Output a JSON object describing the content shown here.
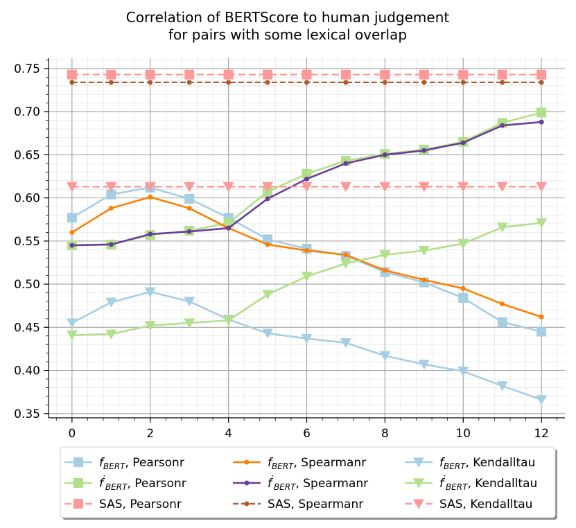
{
  "chart_data": {
    "type": "line",
    "title_lines": [
      "Correlation of BERTScore to human judgement",
      "for pairs with some lexical overlap"
    ],
    "xlabel": "",
    "ylabel": "",
    "xlim": [
      -0.6,
      12.6
    ],
    "ylim": [
      0.345,
      0.762
    ],
    "x_ticks": [
      0,
      2,
      4,
      6,
      8,
      10,
      12
    ],
    "y_ticks": [
      0.35,
      0.4,
      0.45,
      0.5,
      0.55,
      0.6,
      0.65,
      0.7,
      0.75
    ],
    "grid": true,
    "minor_grid": true,
    "legend_position": "below",
    "x": [
      0,
      1,
      2,
      3,
      4,
      5,
      6,
      7,
      8,
      9,
      10,
      11,
      12
    ],
    "series": [
      {
        "name": "Pearsonr",
        "label_prefix": "f",
        "label_sub": "BERT",
        "prime": false,
        "color": "#a6cee3",
        "marker": "square",
        "dashed": false,
        "values": [
          0.577,
          0.604,
          0.612,
          0.599,
          0.577,
          0.552,
          0.541,
          0.533,
          0.514,
          0.502,
          0.484,
          0.456,
          0.445
        ]
      },
      {
        "name": "Pearsonr",
        "label_prefix": "f",
        "label_sub": "BERT",
        "prime": true,
        "color": "#b2df8a",
        "marker": "square",
        "dashed": false,
        "values": [
          0.545,
          0.546,
          0.557,
          0.562,
          0.571,
          0.607,
          0.628,
          0.643,
          0.651,
          0.656,
          0.665,
          0.687,
          0.699
        ]
      },
      {
        "name": "Pearsonr",
        "label_prefix": "SAS",
        "label_sub": "",
        "prime": false,
        "color": "#fb9a99",
        "marker": "square",
        "dashed": true,
        "values": [
          0.743,
          0.743,
          0.743,
          0.743,
          0.743,
          0.743,
          0.743,
          0.743,
          0.743,
          0.743,
          0.743,
          0.743,
          0.743
        ]
      },
      {
        "name": "Spearmanr",
        "label_prefix": "f",
        "label_sub": "BERT",
        "prime": false,
        "color": "#ff7f00",
        "marker": "circle",
        "dashed": false,
        "values": [
          0.56,
          0.588,
          0.601,
          0.588,
          0.565,
          0.546,
          0.539,
          0.534,
          0.516,
          0.505,
          0.495,
          0.477,
          0.462
        ]
      },
      {
        "name": "Spearmanr",
        "label_prefix": "f",
        "label_sub": "BERT",
        "prime": true,
        "color": "#6a3d9a",
        "marker": "circle",
        "dashed": false,
        "values": [
          0.545,
          0.546,
          0.558,
          0.561,
          0.565,
          0.599,
          0.622,
          0.64,
          0.65,
          0.655,
          0.664,
          0.684,
          0.688
        ]
      },
      {
        "name": "Spearmanr",
        "label_prefix": "SAS",
        "label_sub": "",
        "prime": false,
        "color": "#b15928",
        "marker": "circle",
        "dashed": true,
        "values": [
          0.734,
          0.734,
          0.734,
          0.734,
          0.734,
          0.734,
          0.734,
          0.734,
          0.734,
          0.734,
          0.734,
          0.734,
          0.734
        ]
      },
      {
        "name": "Kendalltau",
        "label_prefix": "f",
        "label_sub": "BERT",
        "prime": false,
        "color": "#a6cee3",
        "marker": "triangle-down",
        "dashed": false,
        "values": [
          0.455,
          0.479,
          0.491,
          0.48,
          0.459,
          0.443,
          0.437,
          0.432,
          0.417,
          0.407,
          0.399,
          0.382,
          0.366
        ]
      },
      {
        "name": "Kendalltau",
        "label_prefix": "f",
        "label_sub": "BERT",
        "prime": true,
        "color": "#b2df8a",
        "marker": "triangle-down",
        "dashed": false,
        "values": [
          0.441,
          0.442,
          0.452,
          0.455,
          0.458,
          0.488,
          0.509,
          0.524,
          0.534,
          0.539,
          0.547,
          0.566,
          0.571
        ]
      },
      {
        "name": "Kendalltau",
        "label_prefix": "SAS",
        "label_sub": "",
        "prime": false,
        "color": "#fb9a99",
        "marker": "triangle-down",
        "dashed": true,
        "values": [
          0.613,
          0.613,
          0.613,
          0.613,
          0.613,
          0.613,
          0.613,
          0.613,
          0.613,
          0.613,
          0.613,
          0.613,
          0.613
        ]
      }
    ]
  }
}
